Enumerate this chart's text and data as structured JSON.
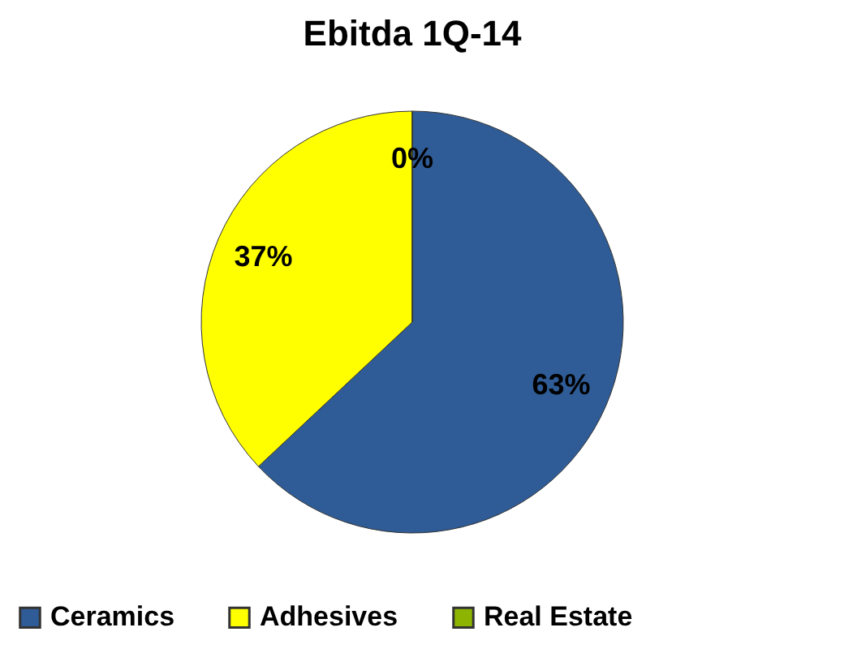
{
  "chart_data": {
    "type": "pie",
    "title": "Ebitda 1Q-14",
    "categories": [
      "Ceramics",
      "Adhesives",
      "Real Estate"
    ],
    "values": [
      63,
      37,
      0
    ],
    "colors": [
      "#2f5c96",
      "#ffff00",
      "#8cb400"
    ],
    "value_labels": [
      "63%",
      "37%",
      "0%"
    ],
    "legend": "bottom"
  }
}
